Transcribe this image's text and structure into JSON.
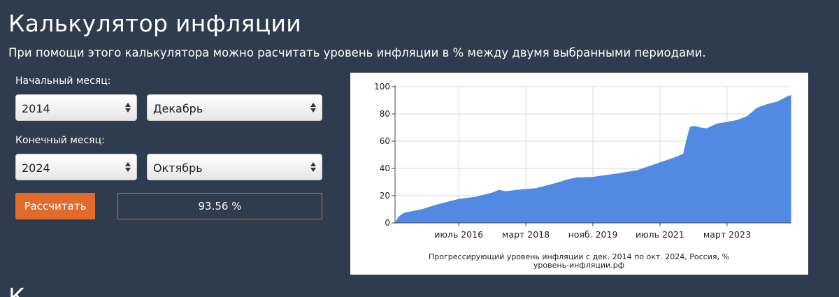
{
  "page": {
    "title": "Калькулятор инфляции",
    "subtitle": "При помощи этого калькулятора можно расчитать уровень инфляции в % между двумя выбранными периодами.",
    "next_heading_fragment": "К"
  },
  "form": {
    "start_label": "Начальный месяц:",
    "start_year": "2014",
    "start_month": "Декабрь",
    "end_label": "Конечный месяц:",
    "end_year": "2024",
    "end_month": "Октябрь",
    "calculate_label": "Рассчитать",
    "result": "93.56 %"
  },
  "colors": {
    "background": "#2f3b4e",
    "accent": "#e06b2a",
    "series_fill": "#5189e3"
  },
  "chart_data": {
    "type": "area",
    "title": "Прогрессирующий уровень инфляции с дек. 2014 по окт. 2024, Россия, %",
    "subtitle": "уровень-инфляции.рф",
    "xlabel": "",
    "ylabel": "",
    "ylim": [
      0,
      100
    ],
    "xlim": [
      "2014-12",
      "2024-10"
    ],
    "y_ticks": [
      "0",
      "20",
      "40",
      "60",
      "80",
      "100"
    ],
    "x_ticks": [
      {
        "label": "июль 2016",
        "date": "2016-07"
      },
      {
        "label": "март 2018",
        "date": "2018-03"
      },
      {
        "label": "нояб. 2019",
        "date": "2019-11"
      },
      {
        "label": "июль 2021",
        "date": "2021-07"
      },
      {
        "label": "март 2023",
        "date": "2023-03"
      }
    ],
    "grid": true,
    "series": [
      {
        "points": [
          [
            "2014-12",
            0
          ],
          [
            "2015-01",
            3.9
          ],
          [
            "2015-02",
            6.2
          ],
          [
            "2015-03",
            7.4
          ],
          [
            "2015-05",
            8.3
          ],
          [
            "2015-08",
            9.8
          ],
          [
            "2015-12",
            12.9
          ],
          [
            "2016-04",
            15.5
          ],
          [
            "2016-07",
            17.3
          ],
          [
            "2016-12",
            18.9
          ],
          [
            "2017-05",
            22.0
          ],
          [
            "2017-07",
            24.0
          ],
          [
            "2017-09",
            22.9
          ],
          [
            "2017-12",
            23.9
          ],
          [
            "2018-06",
            25.3
          ],
          [
            "2018-12",
            29.0
          ],
          [
            "2019-03",
            31.4
          ],
          [
            "2019-06",
            33.1
          ],
          [
            "2019-11",
            33.5
          ],
          [
            "2019-12",
            33.9
          ],
          [
            "2020-06",
            35.9
          ],
          [
            "2020-12",
            38.3
          ],
          [
            "2021-06",
            43.3
          ],
          [
            "2021-12",
            48.4
          ],
          [
            "2022-02",
            50.5
          ],
          [
            "2022-03",
            61.0
          ],
          [
            "2022-04",
            70.2
          ],
          [
            "2022-05",
            70.9
          ],
          [
            "2022-06",
            70.5
          ],
          [
            "2022-07",
            69.8
          ],
          [
            "2022-09",
            69.2
          ],
          [
            "2022-12",
            72.6
          ],
          [
            "2023-03",
            73.9
          ],
          [
            "2023-06",
            75.3
          ],
          [
            "2023-09",
            78.1
          ],
          [
            "2023-12",
            84.3
          ],
          [
            "2024-03",
            86.9
          ],
          [
            "2024-06",
            88.8
          ],
          [
            "2024-09",
            92.6
          ],
          [
            "2024-10",
            93.56
          ]
        ]
      }
    ]
  }
}
